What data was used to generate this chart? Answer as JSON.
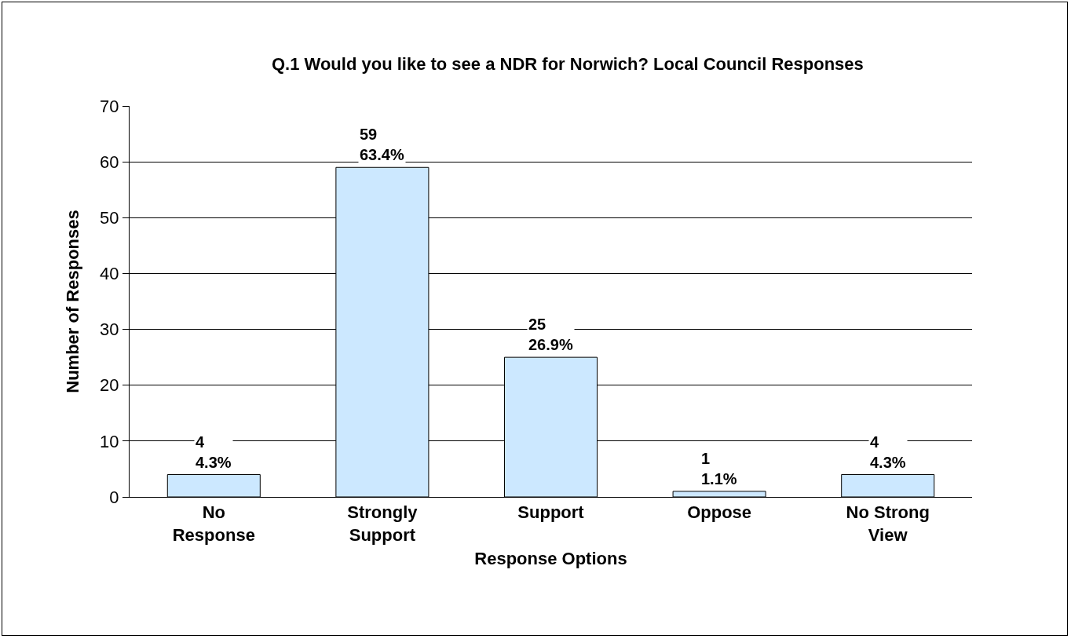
{
  "chart_data": {
    "type": "bar",
    "title": "Q.1 Would you like to see a NDR for Norwich? Local Council Responses",
    "xlabel": "Response Options",
    "ylabel": "Number of Responses",
    "categories": [
      "No\nResponse",
      "Strongly\nSupport",
      "Support",
      "Oppose",
      "No Strong\nView"
    ],
    "values": [
      4,
      59,
      25,
      1,
      4
    ],
    "value_labels": [
      "4\n4.3%",
      "59\n63.4%",
      "25\n26.9%",
      "1\n1.1%",
      "4\n4.3%"
    ],
    "color": "#cce8ff",
    "ylim": [
      0,
      70
    ],
    "yticks": [
      0,
      10,
      20,
      30,
      40,
      50,
      60,
      70
    ],
    "grid": "y",
    "legend": false
  }
}
